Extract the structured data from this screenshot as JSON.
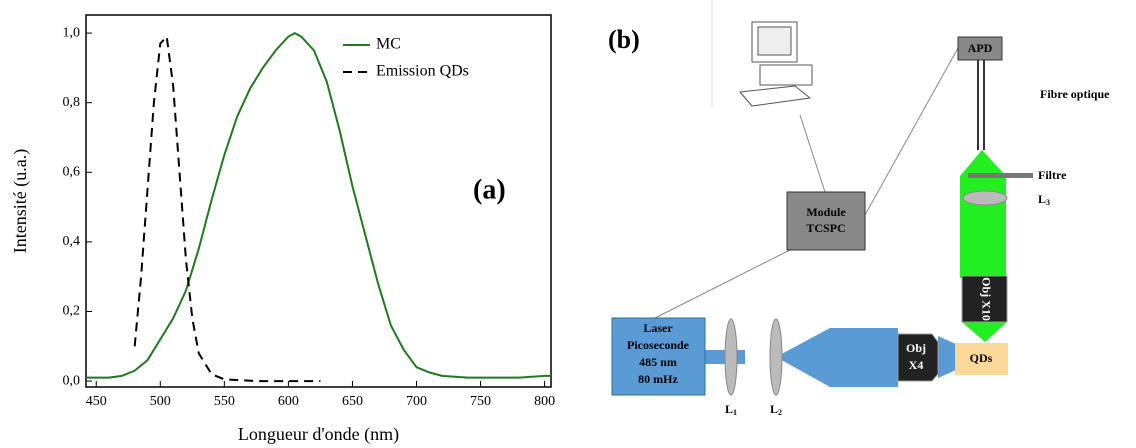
{
  "chart_data": {
    "type": "line",
    "annotation": "(a)",
    "x_label": "Longueur d'onde (nm)",
    "y_label": "Intensité (u.a.)",
    "xlim": [
      442,
      805
    ],
    "ylim": [
      -0.017,
      1.052
    ],
    "xticks": [
      450,
      500,
      550,
      600,
      650,
      700,
      750,
      800
    ],
    "yticks": [
      {
        "value": 0,
        "label": "0,0"
      },
      {
        "value": 0.2,
        "label": "0,2"
      },
      {
        "value": 0.4,
        "label": "0,4"
      },
      {
        "value": 0.6,
        "label": "0,6"
      },
      {
        "value": 0.8,
        "label": "0,8"
      },
      {
        "value": 1.0,
        "label": "1,0"
      }
    ],
    "legend": "upper right",
    "series": [
      {
        "name": "MC",
        "color": "#1f7a1f",
        "dash": false,
        "x": [
          442,
          450,
          460,
          470,
          480,
          490,
          500,
          510,
          520,
          530,
          540,
          550,
          560,
          570,
          575,
          580,
          590,
          600,
          605,
          610,
          620,
          630,
          640,
          650,
          660,
          670,
          680,
          690,
          700,
          710,
          720,
          740,
          760,
          780,
          800,
          805
        ],
        "values": [
          0.01,
          0.01,
          0.01,
          0.015,
          0.03,
          0.06,
          0.12,
          0.18,
          0.26,
          0.38,
          0.52,
          0.65,
          0.76,
          0.84,
          0.87,
          0.9,
          0.95,
          0.99,
          1.0,
          0.99,
          0.95,
          0.86,
          0.72,
          0.56,
          0.42,
          0.28,
          0.16,
          0.09,
          0.04,
          0.025,
          0.015,
          0.01,
          0.01,
          0.01,
          0.015,
          0.015
        ]
      },
      {
        "name": "Emission QDs",
        "color": "#000000",
        "dash": true,
        "x": [
          480,
          485,
          490,
          495,
          500,
          505,
          510,
          515,
          520,
          525,
          530,
          540,
          550,
          575,
          600,
          625
        ],
        "values": [
          0.1,
          0.3,
          0.55,
          0.8,
          0.97,
          0.99,
          0.85,
          0.6,
          0.35,
          0.18,
          0.08,
          0.02,
          0.005,
          0.0,
          0.0,
          0.0
        ]
      }
    ]
  },
  "diagram": {
    "label": "(b)",
    "apd": "APD",
    "fibre": "Fibre optique",
    "filtre": "Filtre",
    "l3": [
      "L",
      "3"
    ],
    "l1": [
      "L",
      "1"
    ],
    "l2": [
      "L",
      "2"
    ],
    "module": [
      "Module",
      "TCSPC"
    ],
    "obj10": "Obj X10",
    "obj4": [
      "Obj",
      "X4"
    ],
    "laser": [
      "Laser",
      "Picoseconde",
      "485 nm",
      "80 mHz"
    ],
    "qds": "QDs"
  }
}
